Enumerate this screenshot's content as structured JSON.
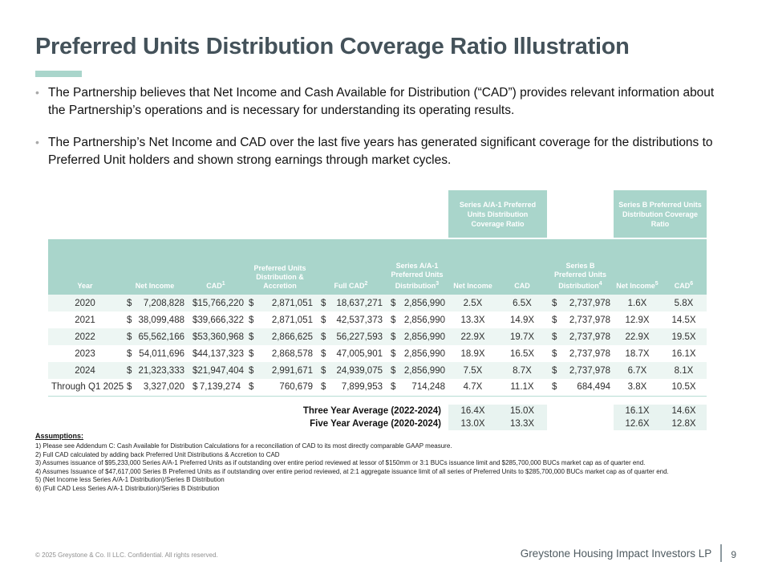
{
  "slide": {
    "title": "Preferred Units Distribution Coverage Ratio Illustration",
    "bullets": [
      "The Partnership believes that Net Income and Cash Available for Distribution (“CAD”) provides relevant information about the Partnership’s operations and is necessary for understanding its operating results.",
      "The Partnership’s Net Income and CAD over the last five years has generated significant coverage for the distributions to Preferred Unit holders and shown strong earnings through market cycles."
    ]
  },
  "table": {
    "coverage_headers": [
      "Series A/A-1 Preferred Units Distribution Coverage Ratio",
      "Series B Preferred Units Distribution Coverage Ratio"
    ],
    "columns": [
      {
        "label": "Year",
        "sup": ""
      },
      {
        "label": "Net Income",
        "sup": ""
      },
      {
        "label": "CAD",
        "sup": "1"
      },
      {
        "label": "Preferred Units Distribution & Accretion",
        "sup": ""
      },
      {
        "label": "Full CAD",
        "sup": "2"
      },
      {
        "label": "Series A/A-1 Preferred Units Distribution",
        "sup": "3"
      },
      {
        "label": "Net Income",
        "sup": ""
      },
      {
        "label": "CAD",
        "sup": ""
      },
      {
        "label": "Series B Preferred Units Distribution",
        "sup": "4"
      },
      {
        "label": "Net Income",
        "sup": "5"
      },
      {
        "label": "CAD",
        "sup": "6"
      }
    ],
    "rows": [
      {
        "year": "2020",
        "net_income": "7,208,828",
        "cad": "15,766,220",
        "pref_dist": "2,871,051",
        "full_cad": "18,637,271",
        "series_a_dist": "2,856,990",
        "a_net_x": "2.5X",
        "a_cad_x": "6.5X",
        "series_b_dist": "2,737,978",
        "b_net_x": "1.6X",
        "b_cad_x": "5.8X"
      },
      {
        "year": "2021",
        "net_income": "38,099,488",
        "cad": "39,666,322",
        "pref_dist": "2,871,051",
        "full_cad": "42,537,373",
        "series_a_dist": "2,856,990",
        "a_net_x": "13.3X",
        "a_cad_x": "14.9X",
        "series_b_dist": "2,737,978",
        "b_net_x": "12.9X",
        "b_cad_x": "14.5X"
      },
      {
        "year": "2022",
        "net_income": "65,562,166",
        "cad": "53,360,968",
        "pref_dist": "2,866,625",
        "full_cad": "56,227,593",
        "series_a_dist": "2,856,990",
        "a_net_x": "22.9X",
        "a_cad_x": "19.7X",
        "series_b_dist": "2,737,978",
        "b_net_x": "22.9X",
        "b_cad_x": "19.5X"
      },
      {
        "year": "2023",
        "net_income": "54,011,696",
        "cad": "44,137,323",
        "pref_dist": "2,868,578",
        "full_cad": "47,005,901",
        "series_a_dist": "2,856,990",
        "a_net_x": "18.9X",
        "a_cad_x": "16.5X",
        "series_b_dist": "2,737,978",
        "b_net_x": "18.7X",
        "b_cad_x": "16.1X"
      },
      {
        "year": "2024",
        "net_income": "21,323,333",
        "cad": "21,947,404",
        "pref_dist": "2,991,671",
        "full_cad": "24,939,075",
        "series_a_dist": "2,856,990",
        "a_net_x": "7.5X",
        "a_cad_x": "8.7X",
        "series_b_dist": "2,737,978",
        "b_net_x": "6.7X",
        "b_cad_x": "8.1X"
      },
      {
        "year": "Through Q1 2025",
        "net_income": "3,327,020",
        "cad": "7,139,274",
        "pref_dist": "760,679",
        "full_cad": "7,899,953",
        "series_a_dist": "714,248",
        "a_net_x": "4.7X",
        "a_cad_x": "11.1X",
        "series_b_dist": "684,494",
        "b_net_x": "3.8X",
        "b_cad_x": "10.5X"
      }
    ],
    "averages": [
      {
        "label": "Three Year Average (2022-2024)",
        "a_net": "16.4X",
        "a_cad": "15.0X",
        "b_net": "16.1X",
        "b_cad": "14.6X"
      },
      {
        "label": "Five Year Average (2020-2024)",
        "a_net": "13.0X",
        "a_cad": "13.3X",
        "b_net": "12.6X",
        "b_cad": "12.8X"
      }
    ]
  },
  "assumptions": {
    "heading": "Assumptions:",
    "notes": [
      "1) Please see Addendum C: Cash Available for Distribution Calculations for a reconciliation of CAD to its most directly comparable GAAP measure.",
      "2) Full CAD calculated by adding back Preferred Unit Distributions & Accretion to CAD",
      "3) Assumes issuance of $95,233,000 Series A/A-1 Preferred Units as if outstanding over entire period reviewed at lessor of $150mm or 3:1 BUCs issuance limit and $285,700,000 BUCs market cap as of quarter end.",
      "4) Assumes Issuance of $47,617,000 Series B Preferred Units as if outstanding over entire period reviewed, at 2:1 aggregate issuance limit of all series of Preferred Units to $285,700,000 BUCs market cap as of quarter end.",
      "5) (Net Income less Series A/A-1 Distribution)/Series B Distribution",
      "6) (Full CAD Less Series A/A-1 Distribution)/Series B Distribution"
    ]
  },
  "footer": {
    "copyright": "© 2025 Greystone & Co. II LLC. Confidential. All rights reserved.",
    "company": "Greystone Housing Impact Investors LP",
    "page": "9"
  },
  "colors": {
    "teal_header": "#a9d5cb",
    "row_stripe": "#edf6f3",
    "average_tint": "#e8f3f0",
    "title_text": "#44525a"
  }
}
